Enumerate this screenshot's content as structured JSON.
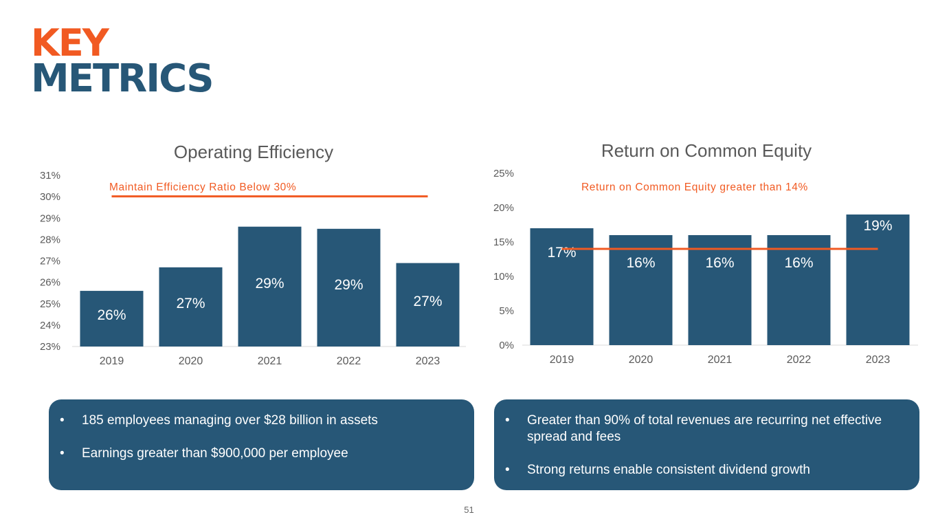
{
  "header": {
    "title_line1": "KEY",
    "title_line2": "METRICS"
  },
  "colors": {
    "accent": "#f15a22",
    "bar": "#275777",
    "text_gray": "#595959",
    "panel": "#275777"
  },
  "chart_data": [
    {
      "type": "bar",
      "title": "Operating Efficiency",
      "categories": [
        "2019",
        "2020",
        "2021",
        "2022",
        "2023"
      ],
      "values": [
        25.6,
        26.7,
        28.6,
        28.5,
        26.9
      ],
      "data_labels": [
        "26%",
        "27%",
        "29%",
        "29%",
        "27%"
      ],
      "ylim": [
        23,
        31
      ],
      "y_ticks": [
        "23%",
        "24%",
        "25%",
        "26%",
        "27%",
        "28%",
        "29%",
        "30%",
        "31%"
      ],
      "target": {
        "label": "Maintain Efficiency Ratio Below 30%",
        "value": 30
      },
      "grid": false,
      "legend": "none"
    },
    {
      "type": "bar",
      "title": "Return on Common Equity",
      "categories": [
        "2019",
        "2020",
        "2021",
        "2022",
        "2023"
      ],
      "values": [
        17,
        16,
        16,
        16,
        19
      ],
      "data_labels": [
        "17%",
        "16%",
        "16%",
        "16%",
        "19%"
      ],
      "ylim": [
        0,
        25
      ],
      "y_ticks": [
        "0%",
        "5%",
        "10%",
        "15%",
        "20%",
        "25%"
      ],
      "target": {
        "label": "Return on Common Equity greater than 14%",
        "value": 14
      },
      "grid": false,
      "legend": "none"
    }
  ],
  "panels": {
    "left": [
      "185 employees managing over $28 billion in assets",
      "Earnings greater than $900,000 per employee"
    ],
    "right": [
      "Greater than 90% of total revenues are recurring net effective spread and fees",
      "Strong returns enable consistent dividend growth"
    ]
  },
  "footer": {
    "page_number": "51"
  }
}
